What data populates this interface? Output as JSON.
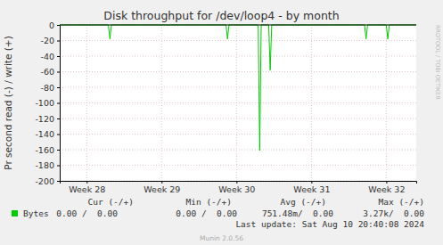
{
  "chart_data": {
    "type": "line",
    "title": "Disk throughput for /dev/loop4 - by month",
    "y_label": "Pr second read (-) / write (+)",
    "x": [
      27.64,
      28.29,
      28.31,
      28.33,
      29.86,
      29.88,
      29.9,
      30.29,
      30.31,
      30.33,
      30.43,
      30.45,
      30.47,
      31.71,
      31.73,
      31.75,
      32.0,
      32.02,
      32.04,
      32.4
    ],
    "series": [
      {
        "name": "Bytes",
        "color": "#00cc00",
        "values": [
          0,
          0,
          -18,
          0,
          0,
          -18,
          0,
          0,
          -161,
          0,
          0,
          -58,
          0,
          0,
          -18,
          0,
          0,
          -18,
          0,
          0
        ]
      }
    ],
    "xlim": [
      27.64,
      32.4
    ],
    "xticks": [
      {
        "value": 28,
        "label": "Week 28"
      },
      {
        "value": 29,
        "label": "Week 29"
      },
      {
        "value": 30,
        "label": "Week 30"
      },
      {
        "value": 31,
        "label": "Week 31"
      },
      {
        "value": 32,
        "label": "Week 32"
      }
    ],
    "ylim": [
      -200,
      0
    ],
    "yticks": [
      0,
      -20,
      -40,
      -60,
      -80,
      -100,
      -120,
      -140,
      -160,
      -180,
      -200
    ],
    "grid": true,
    "stats": {
      "headers": [
        "Cur (-/+)",
        "Min (-/+)",
        "Avg (-/+)",
        "Max (-/+)"
      ],
      "values": [
        "0.00 /  0.00",
        "0.00 /  0.00",
        "751.48m/  0.00",
        "3.27k/  0.00"
      ]
    },
    "last_update": "Last update: Sat Aug 10 20:40:08 2024",
    "credit": "Munin 2.0.56",
    "watermark": "RRDTOOL / TOBI OETIKER"
  }
}
